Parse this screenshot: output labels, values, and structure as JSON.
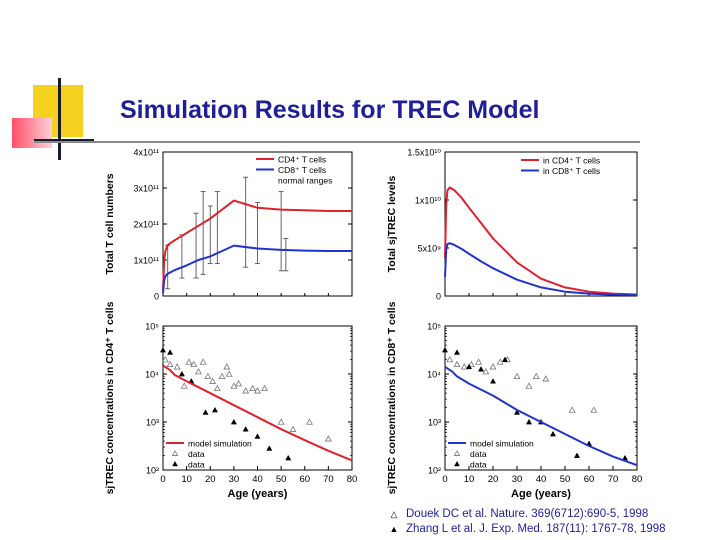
{
  "slide": {
    "title": "Simulation Results for TREC Model",
    "colors": {
      "title": "#1f1f99",
      "red": "#e0202a",
      "blue": "#2233cc",
      "yellow": "#f5d21f"
    }
  },
  "references": [
    {
      "marker": "open-triangle",
      "glyph": "△",
      "text": "Douek DC et al. Nature. 369(6712):690-5, 1998"
    },
    {
      "marker": "filled-triangle",
      "glyph": "▲",
      "text": "Zhang L et al. J. Exp. Med. 187(11): 1767-78, 1998"
    }
  ],
  "chart_data": [
    {
      "id": "tl",
      "type": "line",
      "title": "",
      "ylabel": "Total T cell numbers",
      "xlim": [
        0,
        80
      ],
      "ylim": [
        0,
        4
      ],
      "y_ticks": [
        {
          "v": 0,
          "t": "0"
        },
        {
          "v": 1,
          "t": "1x10¹¹"
        },
        {
          "v": 2,
          "t": "2x10¹¹"
        },
        {
          "v": 3,
          "t": "3x10¹¹"
        },
        {
          "v": 4,
          "t": "4x10¹¹"
        }
      ],
      "x_ticks": [],
      "legend": [
        {
          "label": "CD4⁺ T cells",
          "color": "#e0202a",
          "style": "line"
        },
        {
          "label": "CD8⁺ T cells",
          "color": "#2233cc",
          "style": "line"
        },
        {
          "label": "normal ranges",
          "color": "#000000",
          "style": "text"
        }
      ],
      "series": [
        {
          "name": "CD4+ T cells",
          "color": "#e0202a",
          "x": [
            0,
            0.5,
            1,
            2,
            5,
            10,
            15,
            20,
            25,
            30,
            40,
            50,
            60,
            70,
            80
          ],
          "y": [
            0.15,
            1.0,
            1.25,
            1.42,
            1.55,
            1.75,
            1.95,
            2.15,
            2.4,
            2.65,
            2.45,
            2.4,
            2.38,
            2.36,
            2.36
          ]
        },
        {
          "name": "CD8+ T cells",
          "color": "#2233cc",
          "x": [
            0,
            0.5,
            1,
            2,
            5,
            10,
            15,
            20,
            25,
            30,
            40,
            50,
            60,
            70,
            80
          ],
          "y": [
            0.08,
            0.45,
            0.55,
            0.62,
            0.72,
            0.85,
            1.0,
            1.1,
            1.25,
            1.4,
            1.32,
            1.28,
            1.26,
            1.25,
            1.25
          ]
        }
      ],
      "error_bars": [
        {
          "x": 2,
          "lo": 0.2,
          "hi": 1.4
        },
        {
          "x": 8,
          "lo": 0.5,
          "hi": 1.7
        },
        {
          "x": 14,
          "lo": 0.5,
          "hi": 2.3
        },
        {
          "x": 17,
          "lo": 0.6,
          "hi": 2.9
        },
        {
          "x": 20,
          "lo": 0.9,
          "hi": 2.5
        },
        {
          "x": 23,
          "lo": 0.9,
          "hi": 2.9
        },
        {
          "x": 35,
          "lo": 0.8,
          "hi": 3.3
        },
        {
          "x": 40,
          "lo": 0.9,
          "hi": 2.6
        },
        {
          "x": 50,
          "lo": 0.7,
          "hi": 2.9
        },
        {
          "x": 52,
          "lo": 0.7,
          "hi": 1.6
        }
      ]
    },
    {
      "id": "tr",
      "type": "line",
      "title": "",
      "ylabel": "Total sjTREC levels",
      "xlim": [
        0,
        80
      ],
      "ylim": [
        0,
        1.5
      ],
      "y_ticks": [
        {
          "v": 0,
          "t": "0"
        },
        {
          "v": 0.5,
          "t": "5x10⁹"
        },
        {
          "v": 1.0,
          "t": "1x10¹⁰"
        },
        {
          "v": 1.5,
          "t": "1.5x10¹⁰"
        }
      ],
      "x_ticks": [],
      "legend": [
        {
          "label": "in CD4⁺ T cells",
          "color": "#e0202a",
          "style": "line"
        },
        {
          "label": "in CD8⁺ T cells",
          "color": "#2233cc",
          "style": "line"
        }
      ],
      "series": [
        {
          "name": "in CD4+ T cells",
          "color": "#e0202a",
          "x": [
            0,
            0.5,
            1,
            2,
            4,
            7,
            10,
            15,
            20,
            30,
            40,
            50,
            60,
            70,
            80
          ],
          "y": [
            0.4,
            0.95,
            1.1,
            1.13,
            1.1,
            1.02,
            0.92,
            0.76,
            0.6,
            0.35,
            0.18,
            0.09,
            0.045,
            0.025,
            0.015
          ]
        },
        {
          "name": "in CD8+ T cells",
          "color": "#2233cc",
          "x": [
            0,
            0.5,
            1,
            2,
            4,
            7,
            10,
            15,
            20,
            30,
            40,
            50,
            60,
            70,
            80
          ],
          "y": [
            0.2,
            0.48,
            0.54,
            0.55,
            0.53,
            0.49,
            0.44,
            0.36,
            0.29,
            0.17,
            0.09,
            0.045,
            0.025,
            0.015,
            0.01
          ]
        }
      ]
    },
    {
      "id": "bl",
      "type": "line",
      "title": "",
      "ylabel": "sjTREC concentrations in CD4⁺ T cells",
      "xlabel": "Age (years)",
      "scale": "log",
      "xlim": [
        0,
        80
      ],
      "ylim": [
        2,
        5
      ],
      "y_ticks": [
        {
          "v": 2,
          "t": "10²"
        },
        {
          "v": 3,
          "t": "10³"
        },
        {
          "v": 4,
          "t": "10⁴"
        },
        {
          "v": 5,
          "t": "10⁵"
        }
      ],
      "x_ticks": [
        {
          "v": 0,
          "t": "0"
        },
        {
          "v": 10,
          "t": "10"
        },
        {
          "v": 20,
          "t": "20"
        },
        {
          "v": 30,
          "t": "30"
        },
        {
          "v": 40,
          "t": "40"
        },
        {
          "v": 50,
          "t": "50"
        },
        {
          "v": 60,
          "t": "60"
        },
        {
          "v": 70,
          "t": "70"
        },
        {
          "v": 80,
          "t": "80"
        }
      ],
      "legend": [
        {
          "label": "model simulation",
          "color": "#e0202a",
          "style": "line"
        },
        {
          "label": "data",
          "color": "#000000",
          "style": "open"
        },
        {
          "label": "data",
          "color": "#000000",
          "style": "filled"
        }
      ],
      "series": [
        {
          "name": "model simulation",
          "color": "#e0202a",
          "x": [
            0,
            3,
            5,
            10,
            20,
            30,
            40,
            50,
            60,
            70,
            80
          ],
          "y": [
            4.18,
            4.08,
            3.98,
            3.85,
            3.6,
            3.35,
            3.1,
            2.85,
            2.62,
            2.4,
            2.2
          ]
        }
      ],
      "points_open": [
        {
          "x": 1,
          "y": 4.3
        },
        {
          "x": 3,
          "y": 4.2
        },
        {
          "x": 6,
          "y": 4.15
        },
        {
          "x": 9,
          "y": 3.75
        },
        {
          "x": 11,
          "y": 4.25
        },
        {
          "x": 13,
          "y": 4.2
        },
        {
          "x": 15,
          "y": 4.05
        },
        {
          "x": 17,
          "y": 4.25
        },
        {
          "x": 19,
          "y": 3.95
        },
        {
          "x": 21,
          "y": 3.85
        },
        {
          "x": 23,
          "y": 3.7
        },
        {
          "x": 25,
          "y": 3.95
        },
        {
          "x": 27,
          "y": 4.15
        },
        {
          "x": 28,
          "y": 4.0
        },
        {
          "x": 30,
          "y": 3.75
        },
        {
          "x": 32,
          "y": 3.8
        },
        {
          "x": 35,
          "y": 3.65
        },
        {
          "x": 38,
          "y": 3.7
        },
        {
          "x": 40,
          "y": 3.65
        },
        {
          "x": 43,
          "y": 3.7
        },
        {
          "x": 50,
          "y": 3.0
        },
        {
          "x": 55,
          "y": 2.85
        },
        {
          "x": 62,
          "y": 3.0
        },
        {
          "x": 70,
          "y": 2.65
        }
      ],
      "points_filled": [
        {
          "x": 0,
          "y": 4.5
        },
        {
          "x": 3,
          "y": 4.45
        },
        {
          "x": 8,
          "y": 4.0
        },
        {
          "x": 12,
          "y": 3.85
        },
        {
          "x": 18,
          "y": 3.2
        },
        {
          "x": 22,
          "y": 3.25
        },
        {
          "x": 30,
          "y": 3.0
        },
        {
          "x": 35,
          "y": 2.85
        },
        {
          "x": 40,
          "y": 2.7
        },
        {
          "x": 45,
          "y": 2.45
        },
        {
          "x": 53,
          "y": 2.25
        }
      ]
    },
    {
      "id": "br",
      "type": "line",
      "title": "",
      "ylabel": "sjTREC concentrations in CD8⁺ T cells",
      "xlabel": "Age (years)",
      "scale": "log",
      "xlim": [
        0,
        80
      ],
      "ylim": [
        2,
        5
      ],
      "y_ticks": [
        {
          "v": 2,
          "t": "10²"
        },
        {
          "v": 3,
          "t": "10³"
        },
        {
          "v": 4,
          "t": "10⁴"
        },
        {
          "v": 5,
          "t": "10⁵"
        }
      ],
      "x_ticks": [
        {
          "v": 0,
          "t": "0"
        },
        {
          "v": 10,
          "t": "10"
        },
        {
          "v": 20,
          "t": "20"
        },
        {
          "v": 30,
          "t": "30"
        },
        {
          "v": 40,
          "t": "40"
        },
        {
          "v": 50,
          "t": "50"
        },
        {
          "v": 60,
          "t": "60"
        },
        {
          "v": 70,
          "t": "70"
        },
        {
          "v": 80,
          "t": "80"
        }
      ],
      "legend": [
        {
          "label": "model simulation",
          "color": "#2233cc",
          "style": "line"
        },
        {
          "label": "data",
          "color": "#000000",
          "style": "open"
        },
        {
          "label": "data",
          "color": "#000000",
          "style": "filled"
        }
      ],
      "series": [
        {
          "name": "model simulation",
          "color": "#2233cc",
          "x": [
            0,
            3,
            5,
            10,
            20,
            30,
            40,
            50,
            60,
            70,
            80
          ],
          "y": [
            4.15,
            4.05,
            3.95,
            3.8,
            3.55,
            3.25,
            3.0,
            2.75,
            2.5,
            2.28,
            2.1
          ]
        }
      ],
      "points_open": [
        {
          "x": 2,
          "y": 4.3
        },
        {
          "x": 5,
          "y": 4.2
        },
        {
          "x": 8,
          "y": 4.15
        },
        {
          "x": 11,
          "y": 4.2
        },
        {
          "x": 14,
          "y": 4.25
        },
        {
          "x": 17,
          "y": 4.05
        },
        {
          "x": 20,
          "y": 4.15
        },
        {
          "x": 23,
          "y": 4.25
        },
        {
          "x": 26,
          "y": 4.3
        },
        {
          "x": 30,
          "y": 3.95
        },
        {
          "x": 35,
          "y": 3.75
        },
        {
          "x": 38,
          "y": 3.95
        },
        {
          "x": 42,
          "y": 3.9
        },
        {
          "x": 53,
          "y": 3.25
        },
        {
          "x": 62,
          "y": 3.25
        }
      ],
      "points_filled": [
        {
          "x": 0,
          "y": 4.5
        },
        {
          "x": 5,
          "y": 4.45
        },
        {
          "x": 10,
          "y": 4.15
        },
        {
          "x": 15,
          "y": 4.1
        },
        {
          "x": 20,
          "y": 3.85
        },
        {
          "x": 25,
          "y": 4.3
        },
        {
          "x": 30,
          "y": 3.2
        },
        {
          "x": 35,
          "y": 3.0
        },
        {
          "x": 40,
          "y": 3.0
        },
        {
          "x": 45,
          "y": 2.75
        },
        {
          "x": 55,
          "y": 2.3
        },
        {
          "x": 60,
          "y": 2.55
        },
        {
          "x": 75,
          "y": 2.25
        }
      ]
    }
  ]
}
